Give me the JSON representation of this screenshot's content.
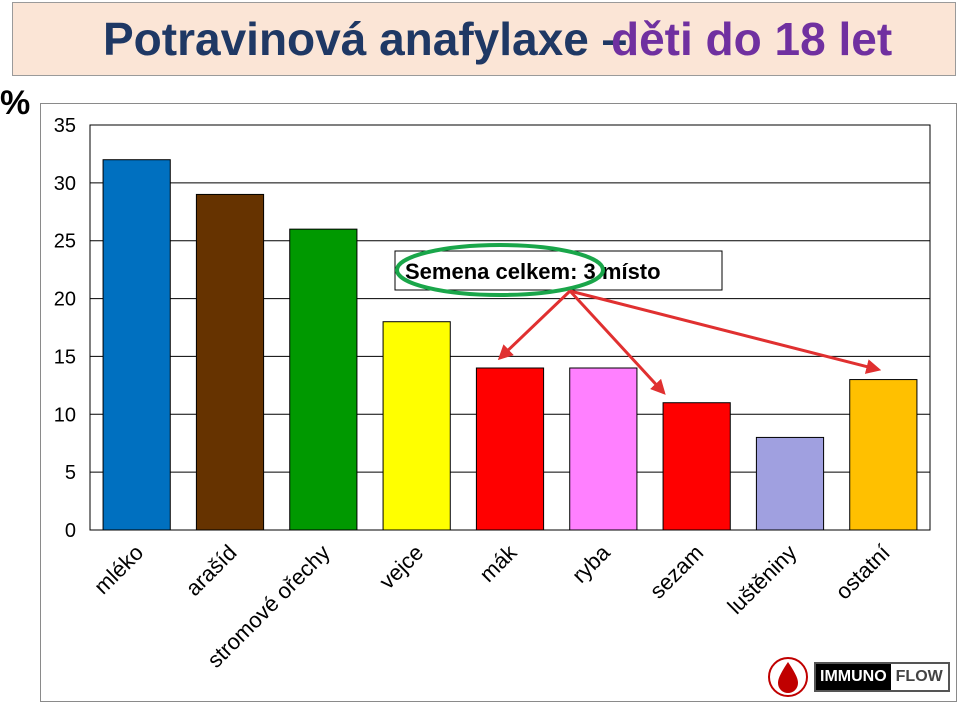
{
  "title": {
    "main": "Potravinová anafylaxe –",
    "accent": "děti do 18 let"
  },
  "colors": {
    "title_main": "#1f3864",
    "title_accent": "#7030a0",
    "title_bg": "#fbe5d6",
    "callout_ellipse": "#1aa64a",
    "arrows": "#e03030"
  },
  "chart_data": {
    "type": "bar",
    "y_unit": "%",
    "categories": [
      "mléko",
      "arašíd",
      "stromové ořechy",
      "vejce",
      "mák",
      "ryba",
      "sezam",
      "luštěniny",
      "ostatní"
    ],
    "values": [
      32,
      29,
      26,
      18,
      14,
      14,
      11,
      8,
      13
    ],
    "bar_colors": [
      "#0070c0",
      "#663300",
      "#009900",
      "#ffff00",
      "#ff0000",
      "#ff80ff",
      "#ff0000",
      "#a0a0e0",
      "#ffc000"
    ],
    "ylim": [
      0,
      35
    ],
    "yticks": [
      0,
      5,
      10,
      15,
      20,
      25,
      30,
      35
    ],
    "grid": true,
    "legend": "none",
    "annotation": {
      "text": "Semena celkem:  3.místo",
      "circled_part": "Semena celkem:",
      "arrows_to": [
        "mák",
        "sezam",
        "ostatní"
      ]
    }
  },
  "logo": {
    "part1": "IMMUNO",
    "part2": "FLOW"
  }
}
